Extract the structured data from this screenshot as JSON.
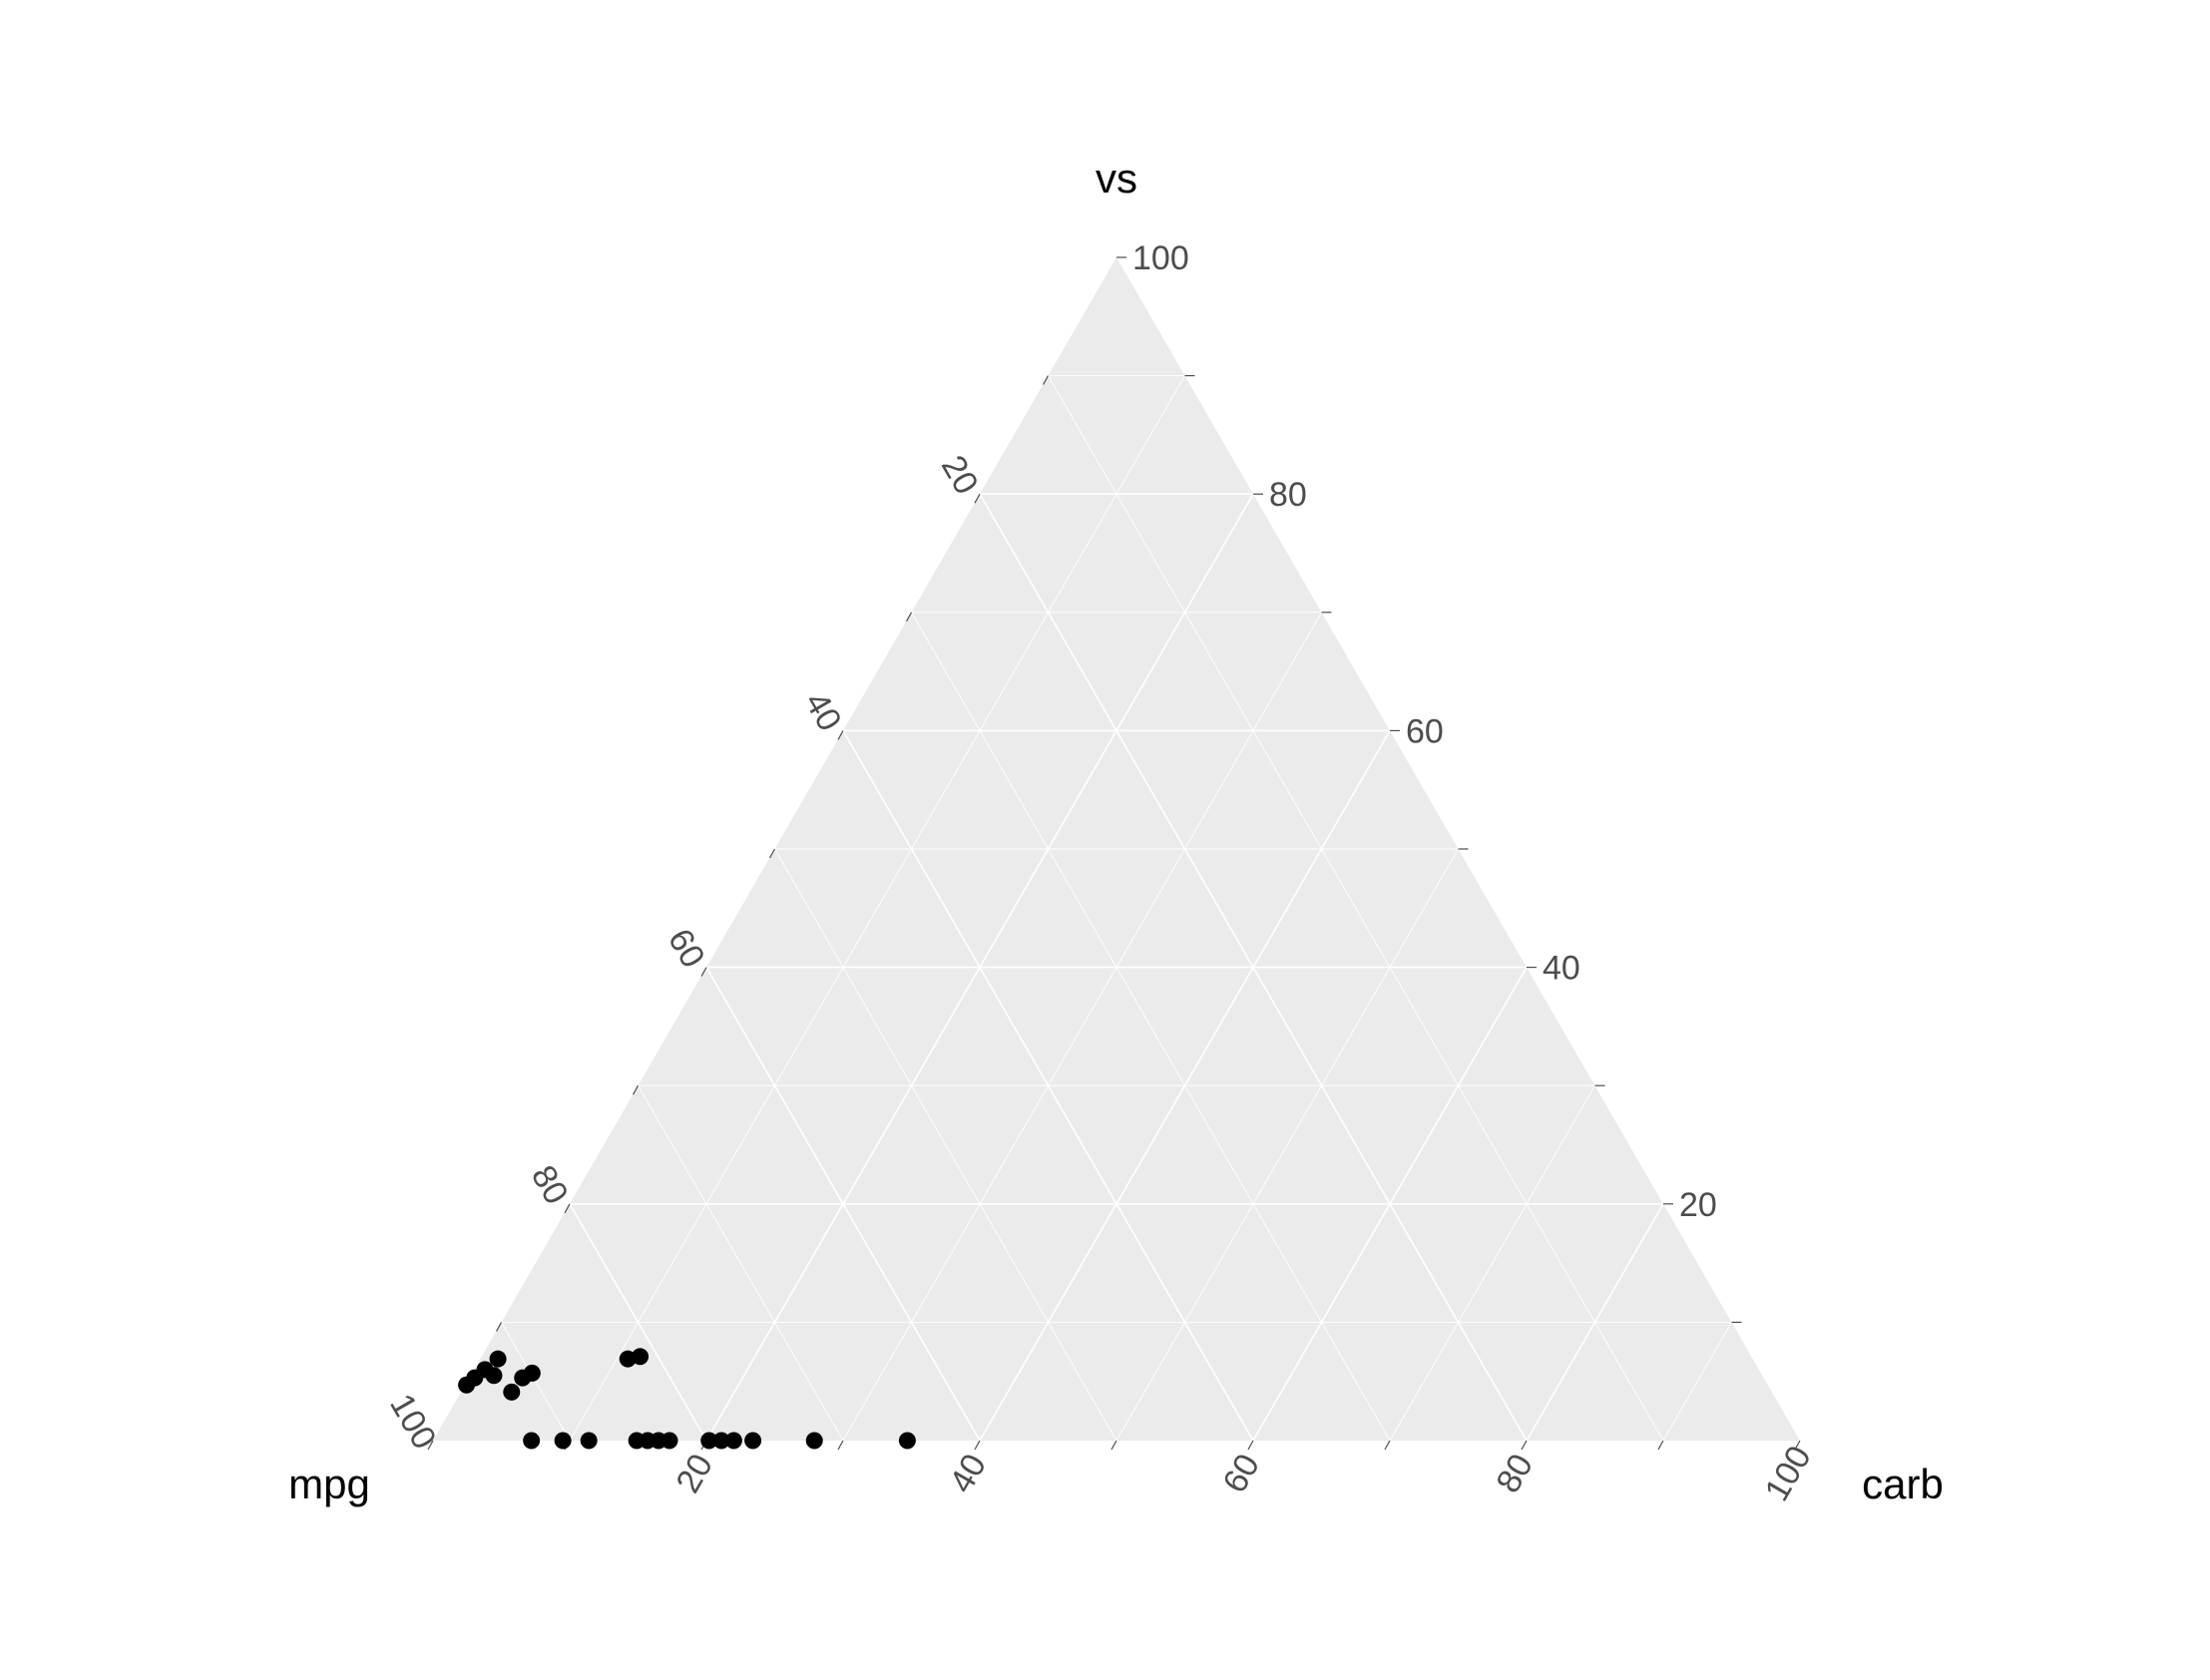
{
  "chart_data": {
    "type": "scatter",
    "subtype": "ternary",
    "axes": {
      "top": {
        "label": "vs",
        "ticks": [
          20,
          40,
          60,
          80,
          100
        ]
      },
      "left": {
        "label": "mpg",
        "ticks": [
          20,
          40,
          60,
          80,
          100
        ]
      },
      "right": {
        "label": "carb",
        "ticks": [
          20,
          40,
          60,
          80,
          100
        ]
      }
    },
    "grid": true,
    "minor_grid": true,
    "panel_color": "#ebebeb",
    "point_color": "#000000",
    "points": [
      {
        "mpg": 95.2,
        "vs": 4.7,
        "carb": 0.1
      },
      {
        "mpg": 94.3,
        "vs": 5.3,
        "carb": 0.4
      },
      {
        "mpg": 93.2,
        "vs": 6.0,
        "carb": 0.8
      },
      {
        "mpg": 92.8,
        "vs": 5.5,
        "carb": 1.7
      },
      {
        "mpg": 91.8,
        "vs": 6.9,
        "carb": 1.3
      },
      {
        "mpg": 92.2,
        "vs": 4.1,
        "carb": 3.7
      },
      {
        "mpg": 90.8,
        "vs": 5.3,
        "carb": 3.9
      },
      {
        "mpg": 89.9,
        "vs": 5.7,
        "carb": 4.4
      },
      {
        "mpg": 82.3,
        "vs": 6.9,
        "carb": 10.8
      },
      {
        "mpg": 81.3,
        "vs": 7.1,
        "carb": 11.6
      },
      {
        "mpg": 92.8,
        "vs": 0,
        "carb": 7.2
      },
      {
        "mpg": 90.5,
        "vs": 0,
        "carb": 9.5
      },
      {
        "mpg": 88.6,
        "vs": 0,
        "carb": 11.4
      },
      {
        "mpg": 85.1,
        "vs": 0,
        "carb": 14.9
      },
      {
        "mpg": 84.3,
        "vs": 0,
        "carb": 15.7
      },
      {
        "mpg": 83.5,
        "vs": 0,
        "carb": 16.5
      },
      {
        "mpg": 82.7,
        "vs": 0,
        "carb": 17.3
      },
      {
        "mpg": 79.8,
        "vs": 0,
        "carb": 20.2
      },
      {
        "mpg": 78.9,
        "vs": 0,
        "carb": 21.1
      },
      {
        "mpg": 78.0,
        "vs": 0,
        "carb": 22.0
      },
      {
        "mpg": 76.6,
        "vs": 0,
        "carb": 23.4
      },
      {
        "mpg": 72.1,
        "vs": 0,
        "carb": 27.9
      },
      {
        "mpg": 65.3,
        "vs": 0,
        "carb": 34.7
      }
    ]
  }
}
